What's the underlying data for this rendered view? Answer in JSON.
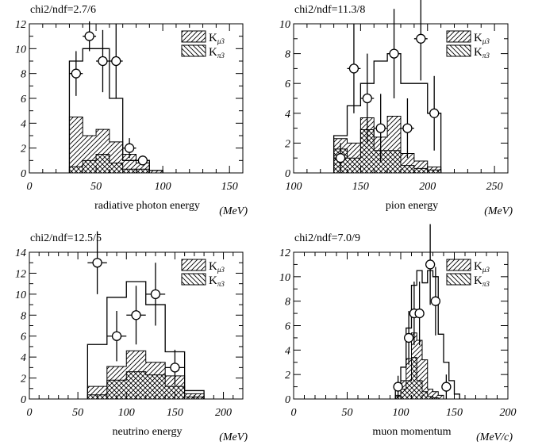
{
  "chart_data": [
    {
      "type": "histogram",
      "stat_label": "chi2/ndf=2.7/6",
      "xlabel": "radiative photon energy",
      "xunit": "(MeV)",
      "xlim": [
        0,
        160
      ],
      "ylim": [
        0,
        12
      ],
      "xticks": [
        0,
        50,
        100,
        150
      ],
      "yticks": [
        0,
        2,
        4,
        6,
        8,
        10,
        12
      ],
      "legend": [
        {
          "base": "K",
          "sub": "μ3",
          "pattern": "hatch-right"
        },
        {
          "base": "K",
          "sub": "π3",
          "pattern": "hatch-left"
        }
      ],
      "legend_position": "top-right",
      "bin_edges": [
        30,
        40,
        50,
        60,
        70,
        80,
        90,
        100
      ],
      "total": [
        9,
        10,
        10,
        6,
        1,
        1,
        0.2
      ],
      "k_mu3": [
        4.5,
        3,
        3.5,
        2.5,
        1.5,
        0.8,
        0.2
      ],
      "k_pi3": [
        0.5,
        1,
        1.5,
        0.8,
        0.3,
        0.3,
        0
      ],
      "data_points": [
        {
          "x": 35,
          "y": 8,
          "err": 1.8,
          "xerr": 5
        },
        {
          "x": 45,
          "y": 11,
          "err": 1.2,
          "xerr": 5
        },
        {
          "x": 55,
          "y": 9,
          "err": 2.5,
          "xerr": 5
        },
        {
          "x": 65,
          "y": 9,
          "err": 3,
          "xerr": 5
        },
        {
          "x": 75,
          "y": 2,
          "err": 0.8,
          "xerr": 5
        },
        {
          "x": 85,
          "y": 1,
          "err": 0.4,
          "xerr": 5
        }
      ]
    },
    {
      "type": "histogram",
      "stat_label": "chi2/ndf=11.3/8",
      "xlabel": "pion energy",
      "xunit": "(MeV)",
      "xlim": [
        100,
        260
      ],
      "ylim": [
        0,
        10
      ],
      "xticks": [
        100,
        150,
        200,
        250
      ],
      "yticks": [
        0,
        2,
        4,
        6,
        8,
        10
      ],
      "legend": [
        {
          "base": "K",
          "sub": "μ3",
          "pattern": "hatch-right"
        },
        {
          "base": "K",
          "sub": "π3",
          "pattern": "hatch-left"
        }
      ],
      "legend_position": "top-right",
      "bin_edges": [
        130,
        140,
        150,
        160,
        170,
        180,
        190,
        200,
        210
      ],
      "total": [
        2.5,
        4.5,
        6,
        7.5,
        8,
        6,
        6,
        4
      ],
      "k_mu3": [
        2.3,
        2,
        3.7,
        2.4,
        3.8,
        1.3,
        0.8,
        0.4
      ],
      "k_pi3": [
        1.6,
        1,
        2.9,
        1.5,
        1.5,
        0.5,
        0.3,
        0.2
      ],
      "data_points": [
        {
          "x": 135,
          "y": 1,
          "err": 1,
          "xerr": 5
        },
        {
          "x": 145,
          "y": 7,
          "err": 3,
          "xerr": 5
        },
        {
          "x": 155,
          "y": 5,
          "err": 3,
          "xerr": 5
        },
        {
          "x": 165,
          "y": 3,
          "err": 2.3,
          "xerr": 5
        },
        {
          "x": 175,
          "y": 8,
          "err": 3,
          "xerr": 5
        },
        {
          "x": 185,
          "y": 3,
          "err": 2,
          "xerr": 5
        },
        {
          "x": 195,
          "y": 9,
          "err": 2.8,
          "xerr": 5
        },
        {
          "x": 205,
          "y": 4,
          "err": 2.5,
          "xerr": 5
        }
      ]
    },
    {
      "type": "histogram",
      "stat_label": "chi2/ndf=12.5/5",
      "xlabel": "neutrino energy",
      "xunit": "(MeV)",
      "xlim": [
        0,
        220
      ],
      "ylim": [
        0,
        14
      ],
      "xticks": [
        0,
        50,
        100,
        150,
        200
      ],
      "yticks": [
        0,
        2,
        4,
        6,
        8,
        10,
        12,
        14
      ],
      "legend": [
        {
          "base": "K",
          "sub": "μ3",
          "pattern": "hatch-right"
        },
        {
          "base": "K",
          "sub": "π3",
          "pattern": "hatch-left"
        }
      ],
      "legend_position": "top-right",
      "bin_edges": [
        60,
        80,
        100,
        120,
        140,
        160,
        180
      ],
      "total": [
        5.2,
        9.7,
        11.2,
        9,
        4.5,
        0.8
      ],
      "k_mu3": [
        1.2,
        3.1,
        4.6,
        3.5,
        2.2,
        0.5
      ],
      "k_pi3": [
        0.4,
        1.8,
        2.6,
        2.3,
        1.2,
        0.2
      ],
      "data_points": [
        {
          "x": 70,
          "y": 13,
          "err": 3,
          "xerr": 10
        },
        {
          "x": 90,
          "y": 6,
          "err": 2.4,
          "xerr": 10
        },
        {
          "x": 110,
          "y": 8,
          "err": 2.8,
          "xerr": 10
        },
        {
          "x": 130,
          "y": 10,
          "err": 3,
          "xerr": 10
        },
        {
          "x": 150,
          "y": 3,
          "err": 1.7,
          "xerr": 10
        }
      ]
    },
    {
      "type": "histogram",
      "stat_label": "chi2/ndf=7.0/9",
      "xlabel": "muon momentum",
      "xunit": "(MeV/c)",
      "xlim": [
        0,
        200
      ],
      "ylim": [
        0,
        12
      ],
      "xticks": [
        0,
        50,
        100,
        150,
        200
      ],
      "yticks": [
        0,
        2,
        4,
        6,
        8,
        10,
        12
      ],
      "legend": [
        {
          "base": "K",
          "sub": "μ3",
          "pattern": "hatch-right"
        },
        {
          "base": "K",
          "sub": "π3",
          "pattern": "hatch-left"
        }
      ],
      "legend_position": "top-right",
      "bin_edges": [
        95,
        100,
        105,
        110,
        115,
        120,
        125,
        130,
        135,
        140,
        145,
        150,
        155
      ],
      "total": [
        1,
        2.6,
        5.8,
        9.3,
        10.5,
        9.5,
        10.5,
        10,
        5.3,
        3,
        1.5,
        0.4
      ],
      "k_mu3": [
        0.3,
        1.5,
        3.3,
        5.4,
        4.8,
        3.2,
        0.8,
        0.6,
        0.3,
        0,
        0,
        0
      ],
      "k_pi3": [
        0.2,
        0.8,
        1.5,
        3.4,
        1.5,
        0.6,
        0.2,
        0.1,
        0,
        0,
        0,
        0
      ],
      "data_points": [
        {
          "x": 97.5,
          "y": 1,
          "err": 0.9,
          "xerr": 2.5
        },
        {
          "x": 107.5,
          "y": 5,
          "err": 2.2,
          "xerr": 2.5
        },
        {
          "x": 112.5,
          "y": 7,
          "err": 2.6,
          "xerr": 2.5
        },
        {
          "x": 117.5,
          "y": 7,
          "err": 2.6,
          "xerr": 2.5
        },
        {
          "x": 127.5,
          "y": 11,
          "err": 3.3,
          "xerr": 2.5
        },
        {
          "x": 132.5,
          "y": 8,
          "err": 2.8,
          "xerr": 2.5
        },
        {
          "x": 142.5,
          "y": 1,
          "err": 1,
          "xerr": 2.5
        }
      ]
    }
  ]
}
